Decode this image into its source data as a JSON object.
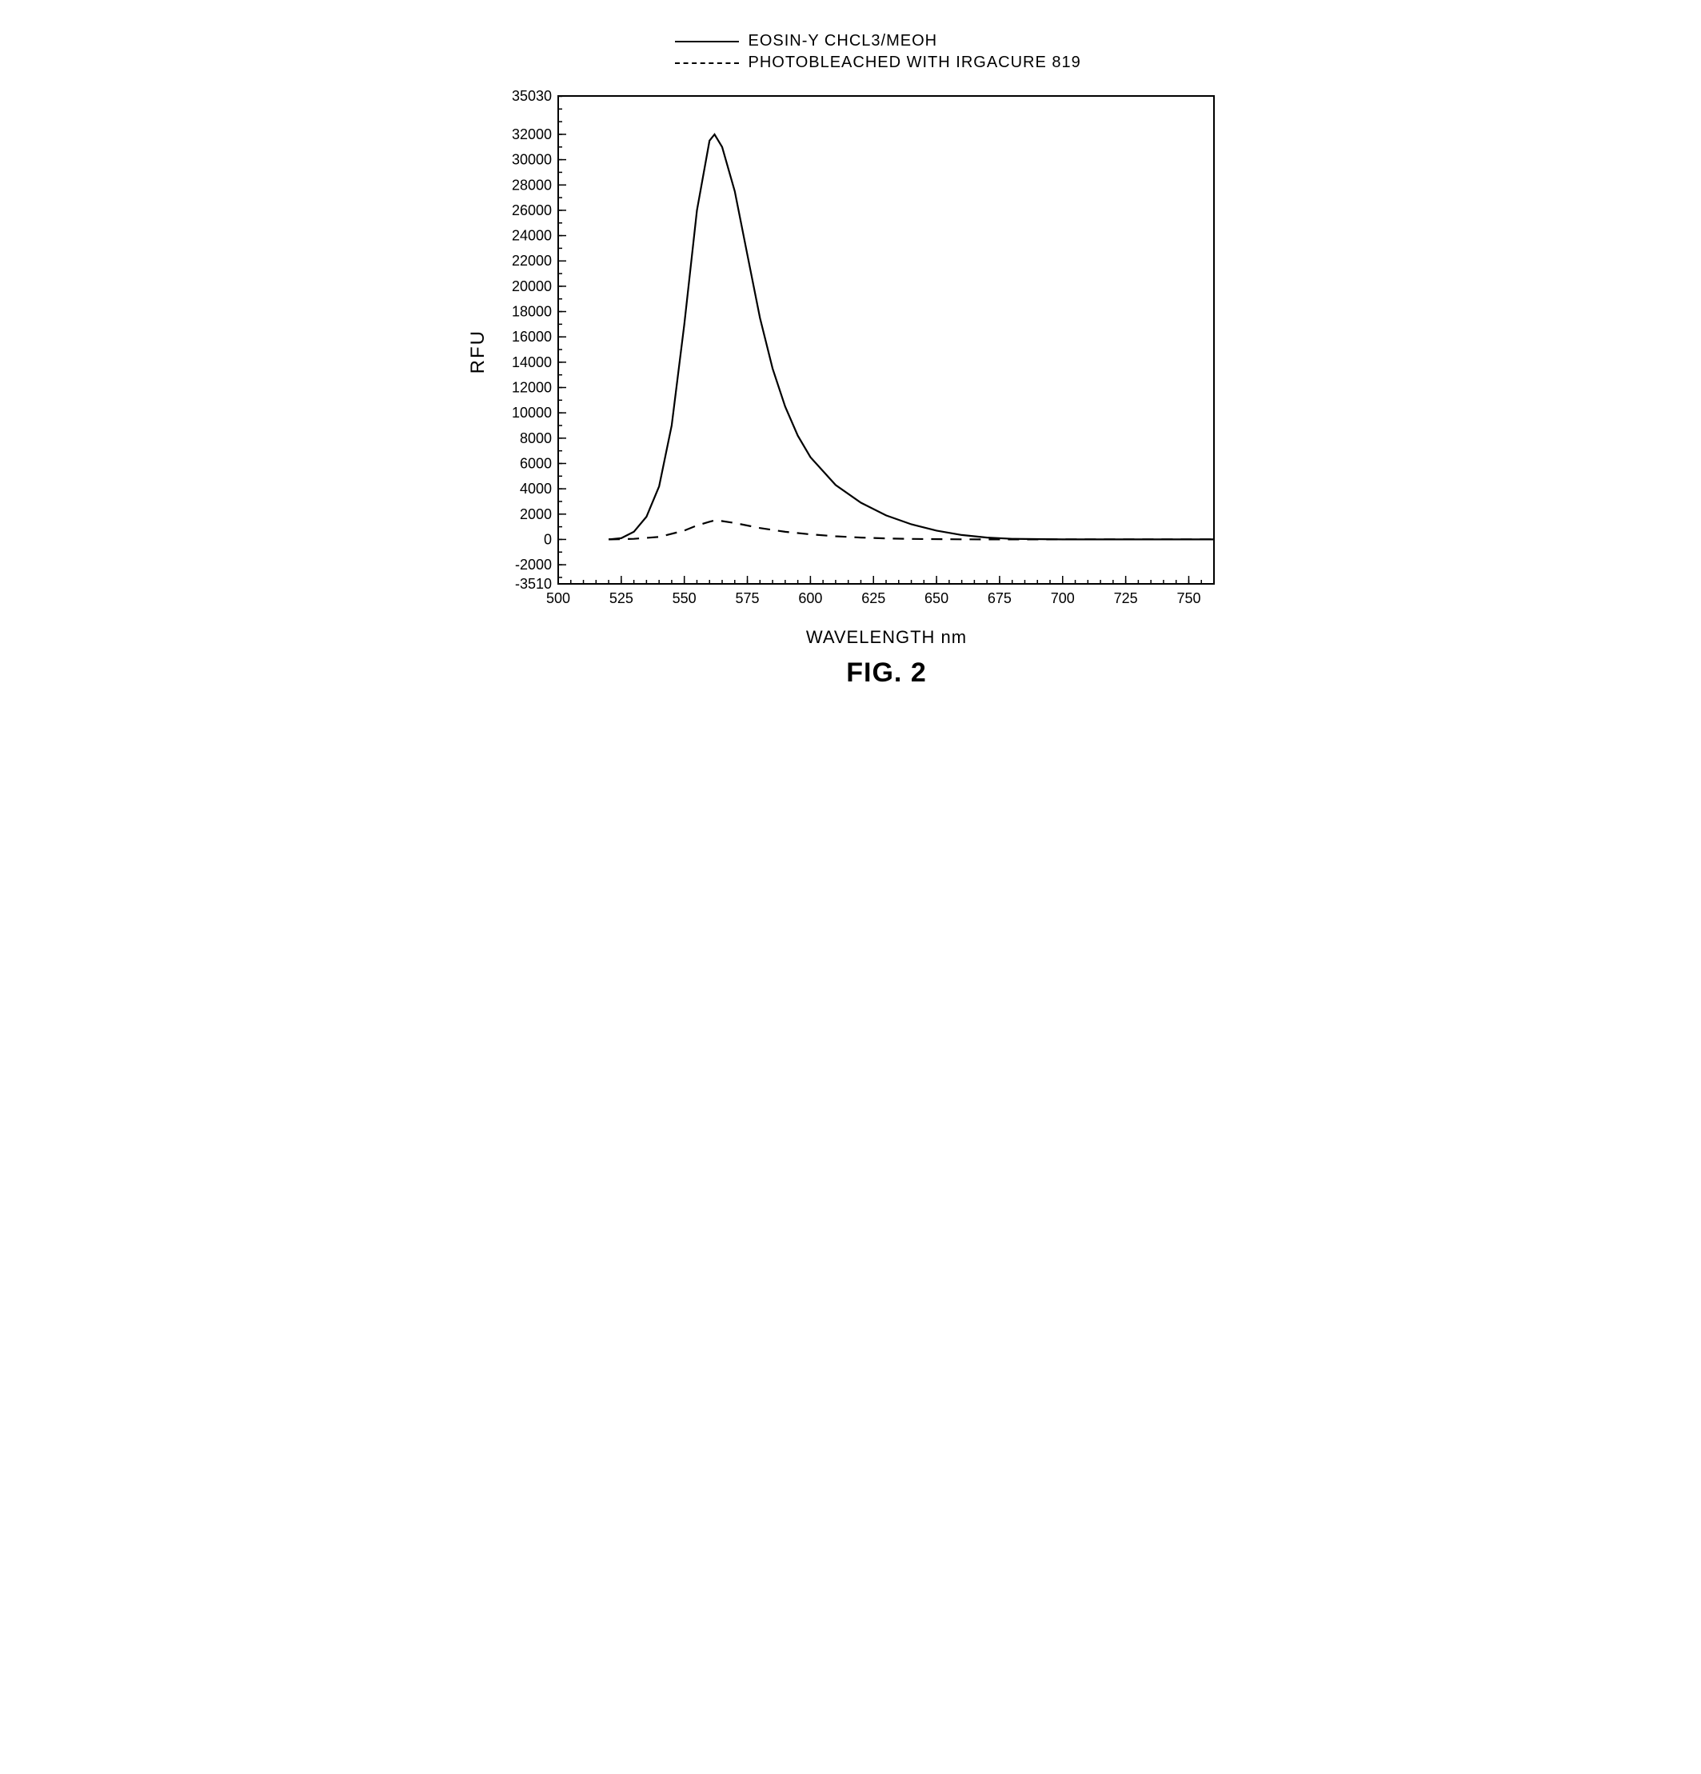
{
  "legend": {
    "items": [
      {
        "label": "EOSIN-Y CHCL3/MEOH",
        "style": "solid"
      },
      {
        "label": "PHOTOBLEACHED WITH IRGACURE 819",
        "style": "dash"
      }
    ]
  },
  "chart": {
    "type": "line",
    "ylabel": "RFU",
    "xlabel": "WAVELENGTH nm",
    "figure_label": "FIG. 2",
    "xlim": [
      500,
      760
    ],
    "ylim": [
      -3510,
      35030
    ],
    "x_ticks": [
      500,
      525,
      550,
      575,
      600,
      625,
      650,
      675,
      700,
      725,
      750
    ],
    "y_ticks_major": [
      -2000,
      0,
      2000,
      4000,
      6000,
      8000,
      10000,
      12000,
      14000,
      16000,
      18000,
      20000,
      22000,
      24000,
      26000,
      28000,
      30000,
      32000
    ],
    "y_tick_bounds": [
      -3510,
      35030
    ],
    "axis_color": "#000000",
    "background_color": "#ffffff",
    "line_color": "#000000",
    "line_width": 2.2,
    "series": [
      {
        "name": "EOSIN-Y CHCL3/MEOH",
        "style": "solid",
        "points": [
          [
            520,
            0
          ],
          [
            525,
            100
          ],
          [
            530,
            600
          ],
          [
            535,
            1800
          ],
          [
            540,
            4200
          ],
          [
            545,
            9000
          ],
          [
            550,
            17000
          ],
          [
            555,
            26000
          ],
          [
            560,
            31500
          ],
          [
            562,
            32000
          ],
          [
            565,
            31000
          ],
          [
            570,
            27500
          ],
          [
            575,
            22500
          ],
          [
            580,
            17500
          ],
          [
            585,
            13500
          ],
          [
            590,
            10500
          ],
          [
            595,
            8200
          ],
          [
            600,
            6500
          ],
          [
            610,
            4300
          ],
          [
            620,
            2900
          ],
          [
            630,
            1900
          ],
          [
            640,
            1200
          ],
          [
            650,
            700
          ],
          [
            660,
            350
          ],
          [
            670,
            150
          ],
          [
            680,
            50
          ],
          [
            700,
            0
          ],
          [
            760,
            0
          ]
        ]
      },
      {
        "name": "PHOTOBLEACHED WITH IRGACURE 819",
        "style": "dash",
        "points": [
          [
            520,
            0
          ],
          [
            530,
            50
          ],
          [
            540,
            200
          ],
          [
            550,
            700
          ],
          [
            555,
            1100
          ],
          [
            560,
            1400
          ],
          [
            562,
            1500
          ],
          [
            565,
            1450
          ],
          [
            570,
            1300
          ],
          [
            580,
            900
          ],
          [
            590,
            600
          ],
          [
            600,
            400
          ],
          [
            610,
            250
          ],
          [
            620,
            150
          ],
          [
            630,
            80
          ],
          [
            640,
            40
          ],
          [
            660,
            10
          ],
          [
            680,
            0
          ],
          [
            760,
            0
          ]
        ]
      }
    ]
  }
}
